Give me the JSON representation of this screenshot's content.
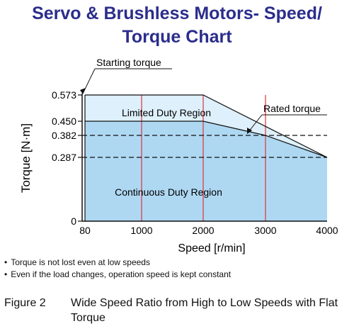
{
  "title_line1": "Servo & Brushless Motors- Speed/",
  "title_line2": "Torque Chart",
  "chart_data": {
    "type": "area",
    "xlabel": "Speed [r/min]",
    "ylabel": "Torque [N·m]",
    "x_ticks": [
      "80",
      "1000",
      "2000",
      "3000",
      "4000"
    ],
    "y_ticks": [
      "0",
      "0.287",
      "0.382",
      "0.450",
      "0.573"
    ],
    "xlim": [
      80,
      4000
    ],
    "ylim": [
      0,
      0.573
    ],
    "series": [
      {
        "name": "Limited Duty Region",
        "x": [
          80,
          2000,
          4000
        ],
        "y": [
          0.573,
          0.573,
          0.287
        ],
        "color": "#ddf0fb"
      },
      {
        "name": "Continuous Duty Region",
        "x": [
          80,
          2000,
          3000,
          4000
        ],
        "y": [
          0.45,
          0.45,
          0.382,
          0.287
        ],
        "color": "#aed8f2"
      }
    ],
    "reference_lines": [
      0.382,
      0.287
    ],
    "vertical_markers": [
      1000,
      2000,
      3000
    ],
    "annotations": [
      "Starting torque",
      "Rated torque"
    ]
  },
  "notes": [
    "Torque is not lost even at low speeds",
    "Even if the load changes, operation speed is kept constant"
  ],
  "caption": {
    "label": "Figure 2",
    "text": "Wide Speed Ratio from High to Low Speeds with Flat Torque"
  }
}
